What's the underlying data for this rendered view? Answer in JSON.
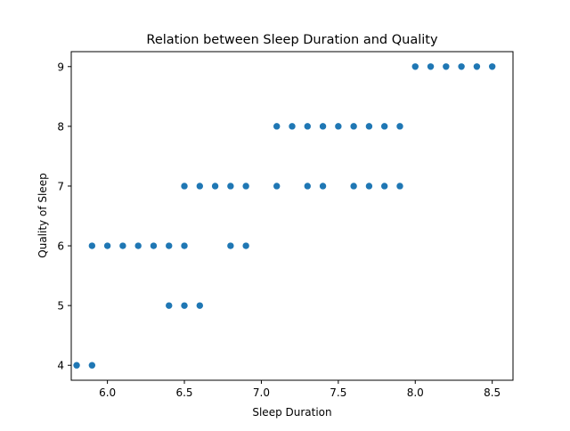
{
  "chart_data": {
    "type": "scatter",
    "title": "Relation between Sleep Duration and Quality",
    "xlabel": "Sleep Duration",
    "ylabel": "Quality of Sleep",
    "xlim": [
      5.765,
      8.635
    ],
    "ylim": [
      3.75,
      9.25
    ],
    "x_ticks": [
      6.0,
      6.5,
      7.0,
      7.5,
      8.0,
      8.5
    ],
    "x_tick_labels": [
      "6.0",
      "6.5",
      "7.0",
      "7.5",
      "8.0",
      "8.5"
    ],
    "y_ticks": [
      4,
      5,
      6,
      7,
      8,
      9
    ],
    "y_tick_labels": [
      "4",
      "5",
      "6",
      "7",
      "8",
      "9"
    ],
    "grid": false,
    "marker_color": "#1f77b4",
    "points": [
      {
        "x": 5.8,
        "y": 4
      },
      {
        "x": 5.9,
        "y": 4
      },
      {
        "x": 6.4,
        "y": 5
      },
      {
        "x": 6.5,
        "y": 5
      },
      {
        "x": 6.6,
        "y": 5
      },
      {
        "x": 5.9,
        "y": 6
      },
      {
        "x": 6.0,
        "y": 6
      },
      {
        "x": 6.1,
        "y": 6
      },
      {
        "x": 6.2,
        "y": 6
      },
      {
        "x": 6.3,
        "y": 6
      },
      {
        "x": 6.4,
        "y": 6
      },
      {
        "x": 6.5,
        "y": 6
      },
      {
        "x": 6.8,
        "y": 6
      },
      {
        "x": 6.9,
        "y": 6
      },
      {
        "x": 6.5,
        "y": 7
      },
      {
        "x": 6.6,
        "y": 7
      },
      {
        "x": 6.7,
        "y": 7
      },
      {
        "x": 6.8,
        "y": 7
      },
      {
        "x": 6.9,
        "y": 7
      },
      {
        "x": 7.1,
        "y": 7
      },
      {
        "x": 7.3,
        "y": 7
      },
      {
        "x": 7.4,
        "y": 7
      },
      {
        "x": 7.6,
        "y": 7
      },
      {
        "x": 7.7,
        "y": 7
      },
      {
        "x": 7.8,
        "y": 7
      },
      {
        "x": 7.9,
        "y": 7
      },
      {
        "x": 7.1,
        "y": 8
      },
      {
        "x": 7.2,
        "y": 8
      },
      {
        "x": 7.3,
        "y": 8
      },
      {
        "x": 7.4,
        "y": 8
      },
      {
        "x": 7.5,
        "y": 8
      },
      {
        "x": 7.6,
        "y": 8
      },
      {
        "x": 7.7,
        "y": 8
      },
      {
        "x": 7.8,
        "y": 8
      },
      {
        "x": 7.9,
        "y": 8
      },
      {
        "x": 8.0,
        "y": 9
      },
      {
        "x": 8.1,
        "y": 9
      },
      {
        "x": 8.2,
        "y": 9
      },
      {
        "x": 8.3,
        "y": 9
      },
      {
        "x": 8.4,
        "y": 9
      },
      {
        "x": 8.5,
        "y": 9
      }
    ]
  }
}
